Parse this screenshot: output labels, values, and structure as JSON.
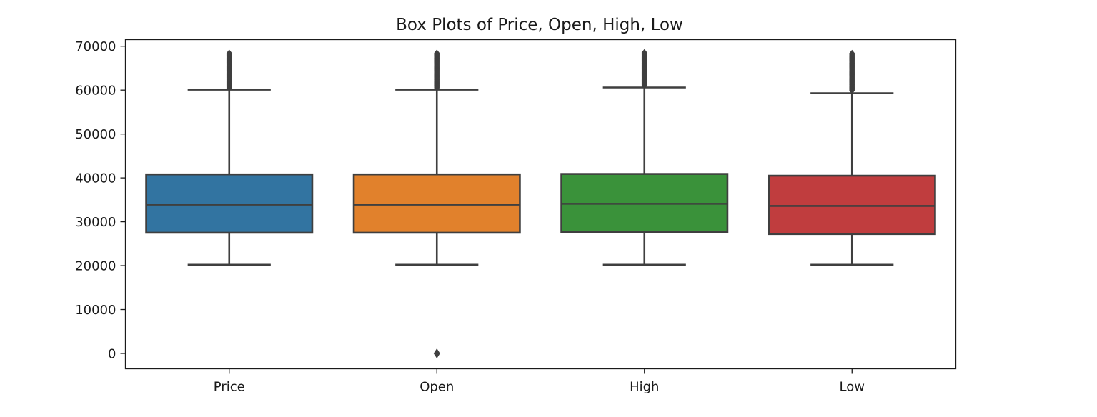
{
  "chart_data": {
    "type": "box",
    "title": "Box Plots of Price, Open, High, Low",
    "xlabel": "",
    "ylabel": "",
    "categories": [
      "Price",
      "Open",
      "High",
      "Low"
    ],
    "ylim": [
      -3500,
      71500
    ],
    "yticks": [
      0,
      10000,
      20000,
      30000,
      40000,
      50000,
      60000,
      70000
    ],
    "grid": false,
    "series": [
      {
        "category": "Price",
        "color": "#3274a1",
        "whisker_low": 20200,
        "q1": 27500,
        "median": 33900,
        "q3": 40800,
        "whisker_high": 60100,
        "outliers_range": [
          60500,
          68500
        ],
        "outliers": []
      },
      {
        "category": "Open",
        "color": "#e1812c",
        "whisker_low": 20200,
        "q1": 27500,
        "median": 33900,
        "q3": 40800,
        "whisker_high": 60100,
        "outliers_range": [
          60500,
          68500
        ],
        "outliers": [
          0
        ]
      },
      {
        "category": "High",
        "color": "#3a923a",
        "whisker_low": 20200,
        "q1": 27700,
        "median": 34100,
        "q3": 40900,
        "whisker_high": 60600,
        "outliers_range": [
          61000,
          68700
        ],
        "outliers": []
      },
      {
        "category": "Low",
        "color": "#c03d3e",
        "whisker_low": 20200,
        "q1": 27200,
        "median": 33600,
        "q3": 40500,
        "whisker_high": 59300,
        "outliers_range": [
          59900,
          68400
        ],
        "outliers": []
      }
    ]
  }
}
